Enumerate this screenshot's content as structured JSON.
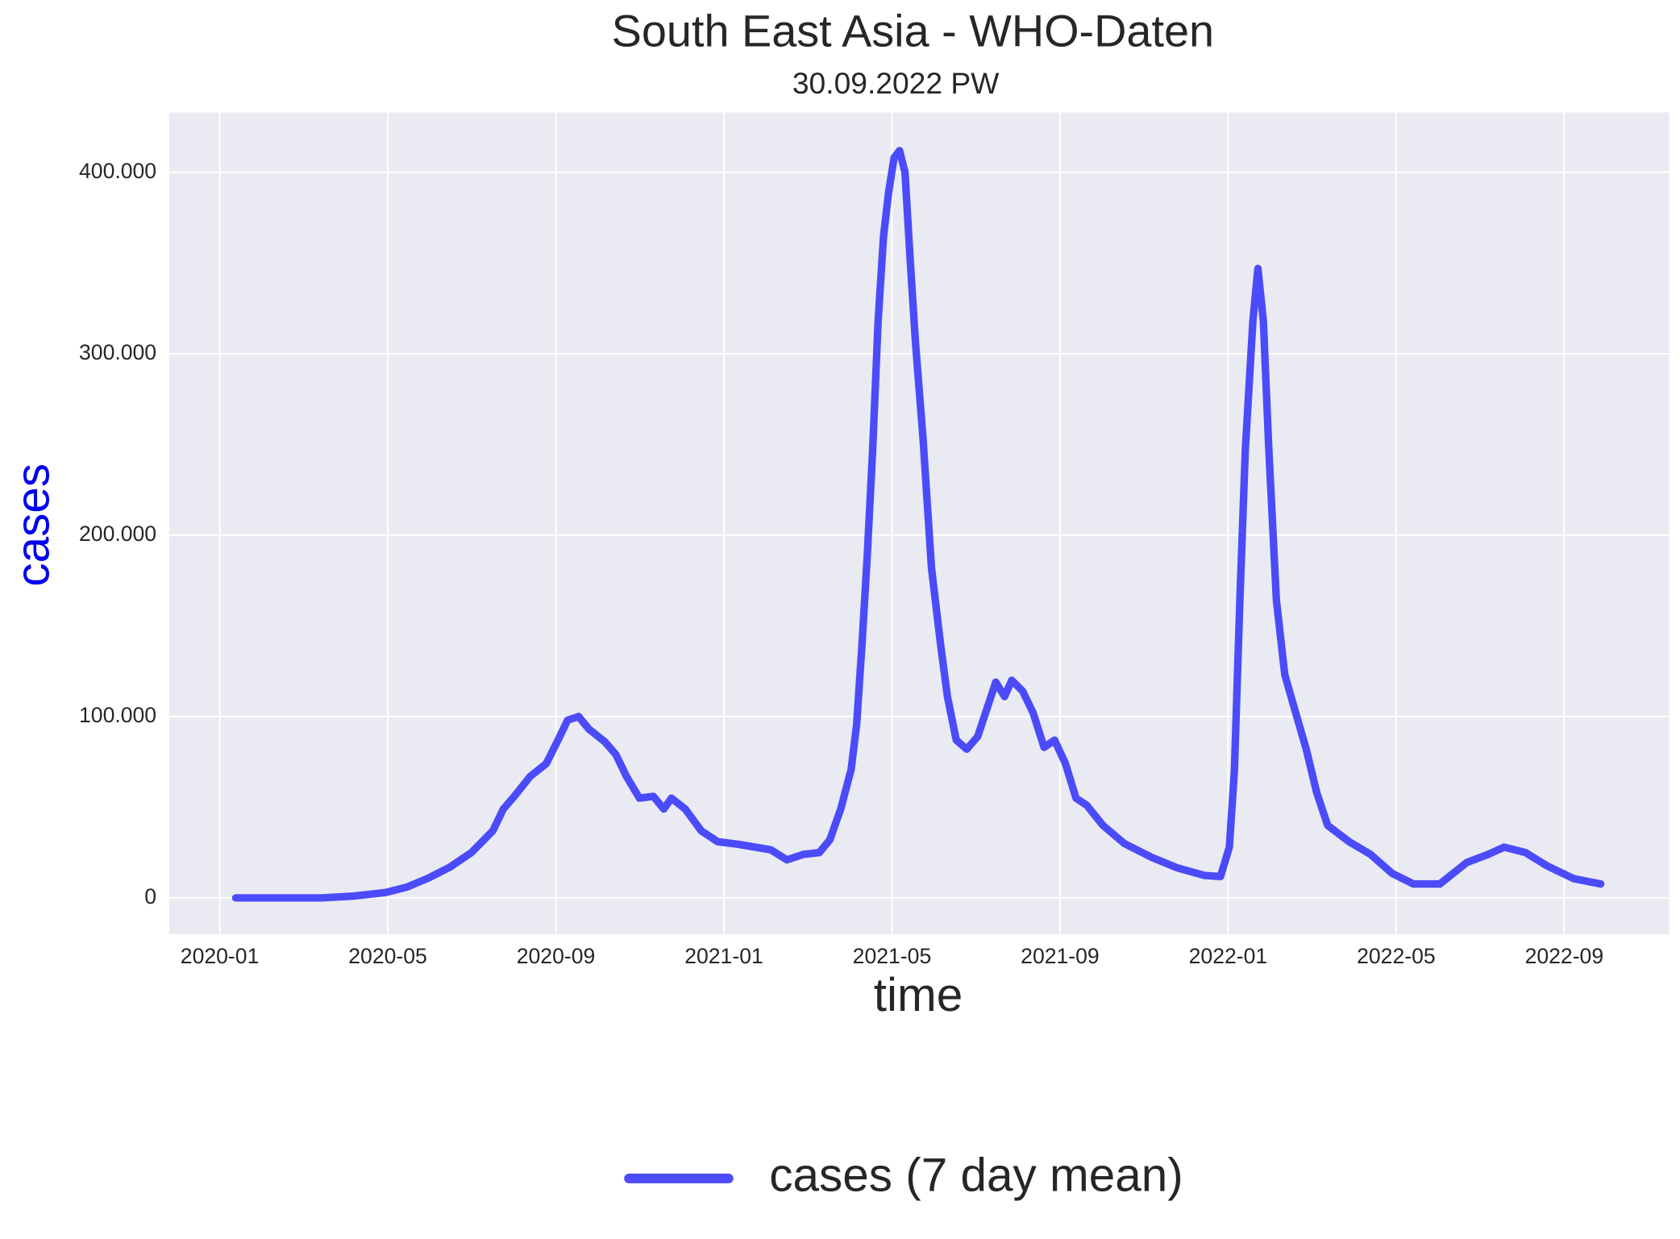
{
  "chart_data": {
    "type": "line",
    "title": "South East Asia - WHO-Daten",
    "subtitle": "30.09.2022 PW",
    "x_label": "time",
    "y_label": "cases",
    "y_label_color": "#0000ee",
    "x": [
      0.38,
      2.42,
      3.18,
      3.95,
      4.46,
      4.97,
      5.48,
      5.99,
      6.5,
      6.75,
      7.01,
      7.39,
      7.77,
      8.03,
      8.28,
      8.54,
      8.79,
      9.17,
      9.43,
      9.68,
      9.99,
      10.32,
      10.57,
      10.75,
      11.08,
      11.46,
      11.85,
      12.36,
      12.74,
      13.12,
      13.5,
      13.89,
      14.27,
      14.52,
      14.78,
      15.03,
      15.16,
      15.29,
      15.41,
      15.54,
      15.67,
      15.8,
      15.92,
      16.05,
      16.18,
      16.31,
      16.43,
      16.56,
      16.74,
      16.94,
      17.15,
      17.32,
      17.53,
      17.78,
      18.04,
      18.27,
      18.47,
      18.68,
      18.85,
      19.11,
      19.36,
      19.62,
      19.87,
      20.13,
      20.38,
      20.64,
      21.02,
      21.53,
      22.17,
      22.8,
      23.44,
      23.82,
      24.03,
      24.15,
      24.28,
      24.41,
      24.59,
      24.71,
      24.84,
      24.97,
      25.15,
      25.35,
      25.61,
      25.86,
      26.11,
      26.37,
      26.88,
      27.39,
      27.9,
      28.41,
      29.04,
      29.68,
      30.19,
      30.57,
      31.08,
      31.59,
      32.23,
      32.87
    ],
    "series": [
      {
        "name": "cases (7 day mean)",
        "color": "#4b4bfa",
        "values": [
          0,
          0,
          1000,
          3000,
          6000,
          11000,
          17000,
          25000,
          37000,
          49000,
          56000,
          67000,
          74000,
          86000,
          98000,
          100000,
          93000,
          86000,
          79000,
          67000,
          55000,
          56000,
          49000,
          55000,
          49000,
          37000,
          31000,
          29500,
          28000,
          26500,
          21000,
          24000,
          25000,
          32000,
          49000,
          71000,
          96000,
          141000,
          188000,
          247000,
          318000,
          365000,
          389000,
          408000,
          412000,
          400000,
          353000,
          306000,
          253000,
          182000,
          141000,
          111000,
          87000,
          82000,
          89000,
          105000,
          119000,
          111000,
          120000,
          114000,
          102000,
          83000,
          87000,
          74000,
          55000,
          51000,
          40000,
          30000,
          22500,
          16500,
          12400,
          11800,
          28000,
          70000,
          164000,
          247000,
          318000,
          347000,
          318000,
          247000,
          164000,
          123000,
          102000,
          82000,
          58000,
          40000,
          31000,
          24000,
          13600,
          7700,
          7700,
          19500,
          24000,
          28000,
          25000,
          17700,
          10600,
          7700
        ]
      }
    ],
    "xlim": [
      -1.2,
      34.5
    ],
    "xticks": [
      {
        "value": 0,
        "label": "2020-01"
      },
      {
        "value": 4,
        "label": "2020-05"
      },
      {
        "value": 8,
        "label": "2020-09"
      },
      {
        "value": 12,
        "label": "2021-01"
      },
      {
        "value": 16,
        "label": "2021-05"
      },
      {
        "value": 20,
        "label": "2021-09"
      },
      {
        "value": 24,
        "label": "2022-01"
      },
      {
        "value": 28,
        "label": "2022-05"
      },
      {
        "value": 32,
        "label": "2022-09"
      }
    ],
    "ylim": [
      -20000,
      433000
    ],
    "yticks": [
      0,
      {
        "value": 100000,
        "label": "100.000"
      },
      {
        "value": 200000,
        "label": "200.000"
      },
      {
        "value": 300000,
        "label": "300.000"
      },
      {
        "value": 400000,
        "label": "400.000"
      }
    ],
    "grid": true,
    "legend": "bottom"
  }
}
